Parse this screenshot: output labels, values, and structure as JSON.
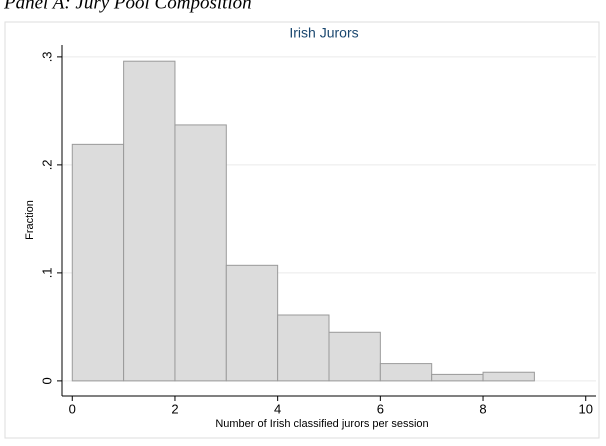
{
  "header": {
    "title": "Panel A: Jury Pool Composition"
  },
  "chart_data": {
    "type": "histogram",
    "title": "Irish Jurors",
    "x_label": "Number of Irish classified jurors per session",
    "y_label": "Fraction",
    "bins": [
      0,
      1,
      2,
      3,
      4,
      5,
      6,
      7,
      8,
      9
    ],
    "values": [
      0.219,
      0.296,
      0.237,
      0.107,
      0.061,
      0.045,
      0.016,
      0.006,
      0.008
    ],
    "color": "#dcdcdc",
    "xlim": [
      -0.2,
      10.2
    ],
    "xticks": [
      0,
      2,
      4,
      6,
      8,
      10
    ],
    "ylim": [
      -0.014,
      0.311
    ],
    "yticks": [
      0,
      {
        "value": 0.1,
        "label": ".1"
      },
      {
        "value": 0.2,
        "label": ".2"
      },
      {
        "value": 0.3,
        "label": ".3"
      }
    ],
    "grid": true
  }
}
